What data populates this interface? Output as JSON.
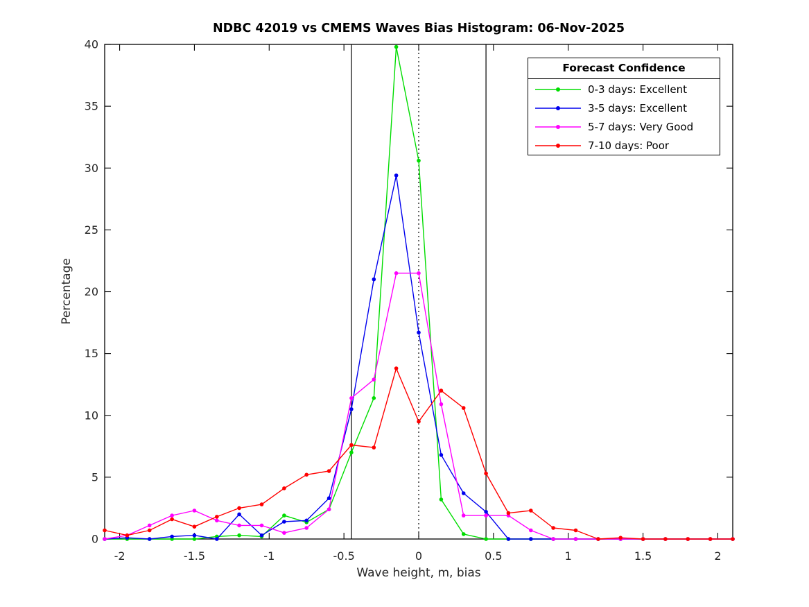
{
  "figure": {
    "background": "#ffffff",
    "axis_color": "#000000"
  },
  "chart_data": {
    "type": "line",
    "title": "NDBC 42019 vs CMEMS Waves Bias Histogram: 06-Nov-2025",
    "xlabel": "Wave height, m, bias",
    "ylabel": "Percentage",
    "xlim": [
      -2.1,
      2.1
    ],
    "ylim": [
      0,
      40
    ],
    "grid": false,
    "box": true,
    "xticks": [
      -2,
      -1.5,
      -1,
      -0.5,
      0,
      0.5,
      1,
      1.5,
      2
    ],
    "xtick_labels": [
      "-2",
      "-1.5",
      "-1",
      "-0.5",
      "0",
      "0.5",
      "1",
      "1.5",
      "2"
    ],
    "yticks": [
      0,
      5,
      10,
      15,
      20,
      25,
      30,
      35,
      40
    ],
    "ytick_labels": [
      "0",
      "5",
      "10",
      "15",
      "20",
      "25",
      "30",
      "35",
      "40"
    ],
    "x": [
      -2.1,
      -1.95,
      -1.8,
      -1.65,
      -1.5,
      -1.35,
      -1.2,
      -1.05,
      -0.9,
      -0.75,
      -0.6,
      -0.45,
      -0.3,
      -0.15,
      0,
      0.15,
      0.3,
      0.45,
      0.6,
      0.75,
      0.9,
      1.05,
      1.2,
      1.35,
      1.5,
      1.65,
      1.8,
      1.95,
      2.1
    ],
    "series": [
      {
        "name": "0-3 days: Excellent",
        "color": "#00dd00",
        "marker": "dot",
        "values": [
          0,
          0,
          0,
          0,
          0,
          0.2,
          0.3,
          0.2,
          1.9,
          1.35,
          2.4,
          7.0,
          11.4,
          39.8,
          30.6,
          3.2,
          0.4,
          0,
          0,
          0,
          0,
          0,
          0,
          0,
          0,
          0,
          0,
          0,
          0
        ]
      },
      {
        "name": "3-5 days: Excellent",
        "color": "#0000ee",
        "marker": "dot",
        "values": [
          0,
          0.1,
          0,
          0.2,
          0.3,
          0,
          2.0,
          0.3,
          1.4,
          1.5,
          3.3,
          10.5,
          21.0,
          29.4,
          16.7,
          6.8,
          3.7,
          2.2,
          0,
          0,
          0,
          0,
          0,
          0,
          0,
          0,
          0,
          0,
          0
        ]
      },
      {
        "name": "5-7 days: Very Good",
        "color": "#ff00ff",
        "marker": "dot",
        "values": [
          0,
          0.3,
          1.1,
          1.9,
          2.3,
          1.5,
          1.1,
          1.1,
          0.5,
          0.9,
          2.4,
          11.4,
          12.9,
          21.5,
          21.5,
          10.9,
          1.9,
          1.9,
          1.9,
          0.7,
          0,
          0,
          0,
          0,
          0,
          0,
          0,
          0,
          0
        ]
      },
      {
        "name": "7-10 days: Poor",
        "color": "#ff0000",
        "marker": "dot",
        "values": [
          0.7,
          0.3,
          0.7,
          1.6,
          1.0,
          1.8,
          2.5,
          2.8,
          4.1,
          5.2,
          5.5,
          7.6,
          7.4,
          13.8,
          9.5,
          12.0,
          10.6,
          5.3,
          2.1,
          2.3,
          0.9,
          0.7,
          0,
          0.1,
          0,
          0,
          0,
          0,
          0
        ]
      }
    ],
    "reference_lines": [
      {
        "x": -0.45,
        "style": "solid",
        "color": "#000000"
      },
      {
        "x": 0,
        "style": "dotted",
        "color": "#000000"
      },
      {
        "x": 0.45,
        "style": "solid",
        "color": "#000000"
      }
    ],
    "legend": {
      "title": "Forecast Confidence",
      "position": "top-right"
    }
  }
}
